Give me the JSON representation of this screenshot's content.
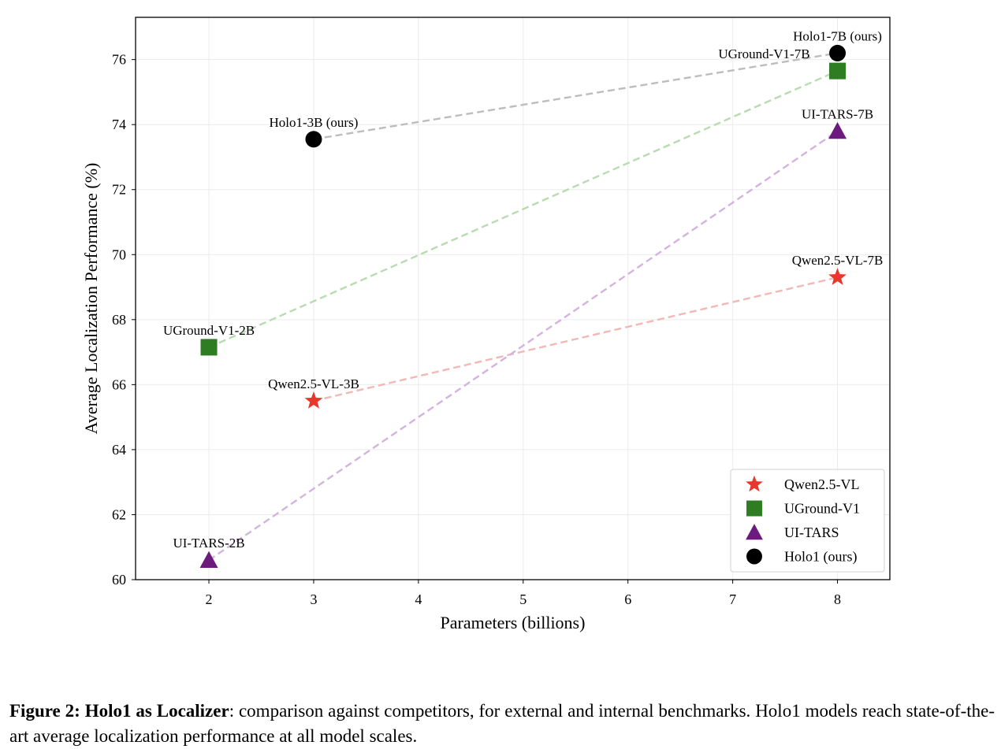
{
  "chart_data": {
    "type": "scatter",
    "xlabel": "Parameters (billions)",
    "ylabel": "Average Localization Performance (%)",
    "xlim": [
      1.3,
      8.5
    ],
    "ylim": [
      60,
      77.3
    ],
    "xticks": [
      2,
      3,
      4,
      5,
      6,
      7,
      8
    ],
    "yticks": [
      60,
      62,
      64,
      66,
      68,
      70,
      72,
      74,
      76
    ],
    "grid": true,
    "legend_position": "bottom-right",
    "series": [
      {
        "name": "Qwen2.5-VL",
        "marker": "star",
        "color": "#e8372c",
        "line_color": "#f2b8b5",
        "x": [
          3,
          8
        ],
        "y": [
          65.5,
          69.3
        ],
        "labels": [
          "Qwen2.5-VL-3B",
          "Qwen2.5-VL-7B"
        ]
      },
      {
        "name": "UGround-V1",
        "marker": "square",
        "color": "#2e7d23",
        "line_color": "#b9dbb1",
        "x": [
          2,
          8
        ],
        "y": [
          67.15,
          75.65
        ],
        "labels": [
          "UGround-V1-2B",
          "UGround-V1-7B"
        ]
      },
      {
        "name": "UI-TARS",
        "marker": "triangle",
        "color": "#6d1a7e",
        "line_color": "#d4b3df",
        "x": [
          2,
          8
        ],
        "y": [
          60.6,
          73.8
        ],
        "labels": [
          "UI-TARS-2B",
          "UI-TARS-7B"
        ]
      },
      {
        "name": "Holo1 (ours)",
        "marker": "circle",
        "color": "#000000",
        "line_color": "#bdbdbd",
        "x": [
          3,
          8
        ],
        "y": [
          73.55,
          76.2
        ],
        "labels": [
          "Holo1-3B (ours)",
          "Holo1-7B (ours)"
        ]
      }
    ]
  },
  "caption": {
    "lead": "Figure 2: Holo1 as Localizer",
    "text": ": comparison against competitors, for external and internal benchmarks. Holo1 models reach state-of-the-art average localization performance at all model scales."
  }
}
